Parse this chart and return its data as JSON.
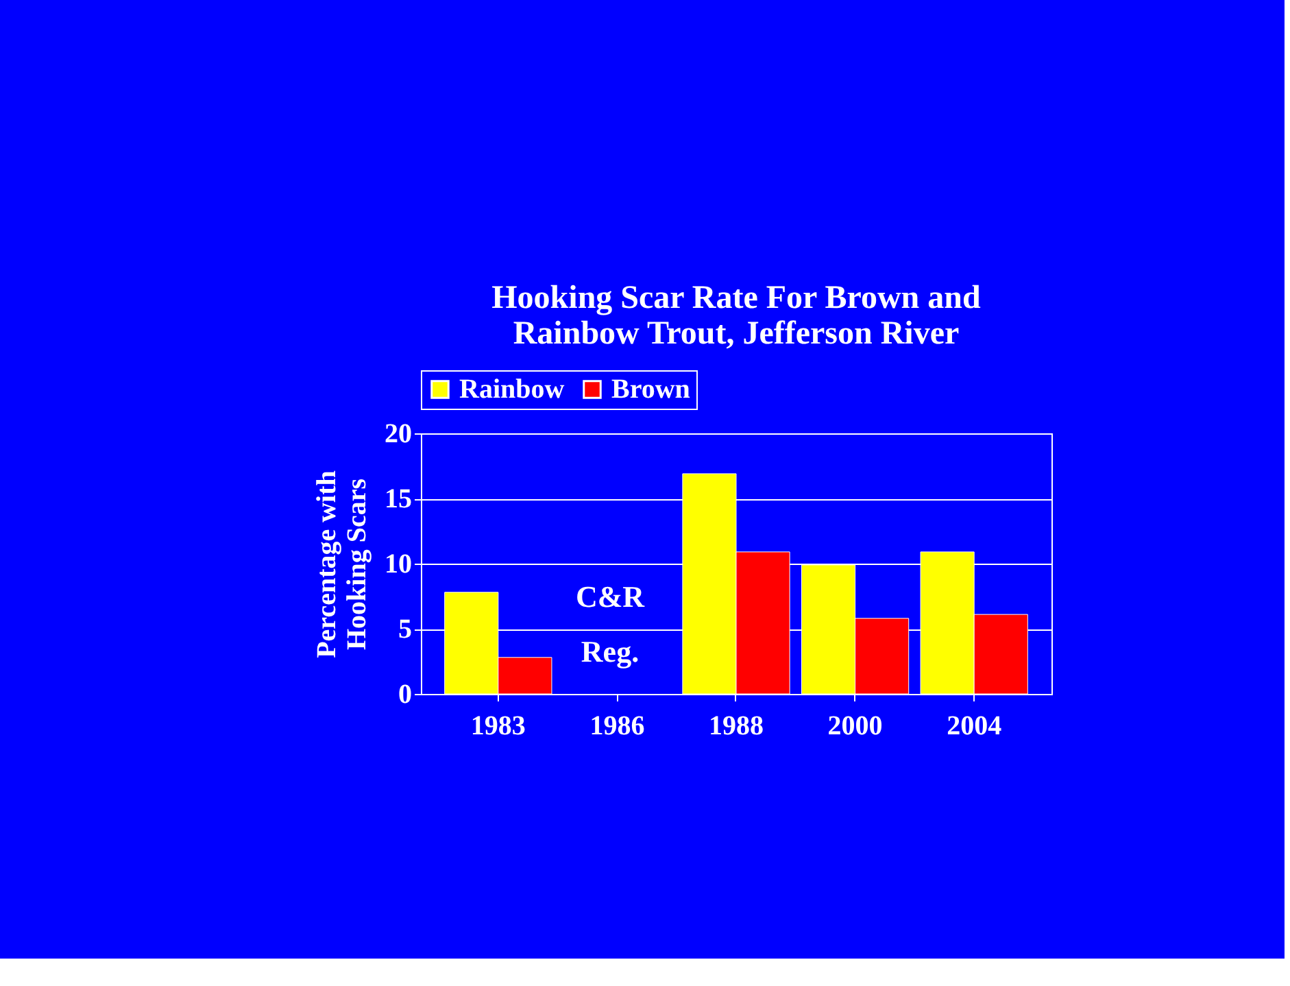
{
  "chart_data": {
    "type": "bar",
    "title": [
      "Hooking Scar Rate For Brown and",
      "Rainbow Trout, Jefferson River"
    ],
    "ylabel": [
      "Percentage with",
      "Hooking Scars"
    ],
    "categories": [
      "1983",
      "1986",
      "1988",
      "2000",
      "2004"
    ],
    "series": [
      {
        "name": "Rainbow",
        "color": "#ffff00",
        "values": [
          7.8,
          null,
          16.9,
          9.9,
          10.9
        ]
      },
      {
        "name": "Brown",
        "color": "#ff0000",
        "values": [
          2.8,
          null,
          10.9,
          5.8,
          6.1
        ]
      }
    ],
    "ylim": [
      0,
      20
    ],
    "yticks": [
      0,
      5,
      10,
      15,
      20
    ],
    "grid": "y",
    "legend": "top",
    "annotations": [
      "C&R Reg."
    ]
  }
}
